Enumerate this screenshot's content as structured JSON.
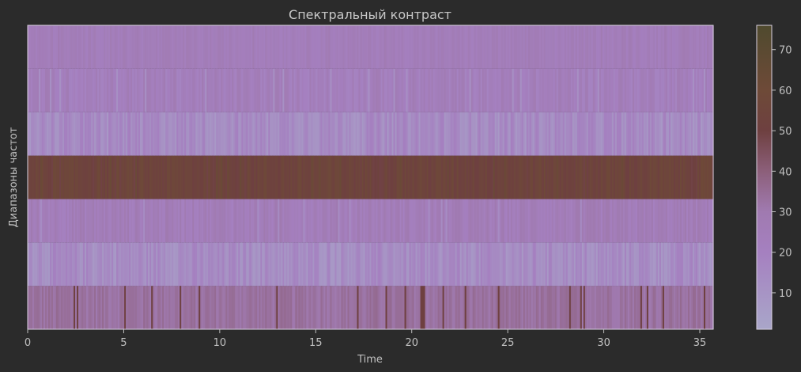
{
  "chart_data": {
    "type": "heatmap",
    "title": "Спектральный контраст",
    "xlabel": "Time",
    "ylabel": "Диапазоны частот",
    "xlim": [
      0,
      35.7
    ],
    "x_ticks": [
      0,
      5,
      10,
      15,
      20,
      25,
      30,
      35
    ],
    "n_bands": 7,
    "bands": [
      {
        "band": 0,
        "base_value": 33,
        "variation": 3,
        "spike_value": 50
      },
      {
        "band": 1,
        "base_value": 14,
        "variation": 6,
        "spike_value": 8
      },
      {
        "band": 2,
        "base_value": 25,
        "variation": 5,
        "spike_value": 14
      },
      {
        "band": 3,
        "base_value": 54,
        "variation": 5,
        "spike_value": 62
      },
      {
        "band": 4,
        "base_value": 15,
        "variation": 6,
        "spike_value": 8
      },
      {
        "band": 5,
        "base_value": 23,
        "variation": 5,
        "spike_value": 12
      },
      {
        "band": 6,
        "base_value": 24,
        "variation": 3,
        "spike_value": 28
      }
    ],
    "colorbar": {
      "range": [
        1,
        76
      ],
      "ticks": [
        10,
        20,
        30,
        40,
        50,
        60,
        70
      ],
      "colormap": [
        {
          "v": 1,
          "color": "#a9a6c9"
        },
        {
          "v": 20,
          "color": "#a580c0"
        },
        {
          "v": 30,
          "color": "#a07ab0"
        },
        {
          "v": 40,
          "color": "#8c5f7a"
        },
        {
          "v": 50,
          "color": "#6e4040"
        },
        {
          "v": 60,
          "color": "#6e4a38"
        },
        {
          "v": 76,
          "color": "#4f4a2e"
        }
      ]
    }
  },
  "style": {
    "background": "#2b2b2b",
    "text_color": "#c0c0c0",
    "axis_color": "#d8d0e0"
  }
}
